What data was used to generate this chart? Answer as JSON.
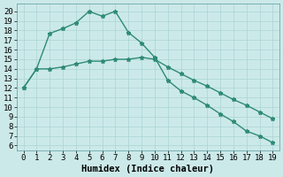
{
  "line1_x": [
    0,
    1,
    2,
    3,
    4,
    5,
    6,
    7,
    8,
    9,
    10,
    11,
    12,
    13,
    14,
    15,
    16,
    17,
    18,
    19
  ],
  "line1_y": [
    12,
    14,
    14,
    14.2,
    14.5,
    14.8,
    14.8,
    15.0,
    15.0,
    15.2,
    15.0,
    14.2,
    13.5,
    12.8,
    12.2,
    11.5,
    10.8,
    10.2,
    9.5,
    8.8
  ],
  "line2_x": [
    0,
    1,
    2,
    3,
    4,
    5,
    6,
    7,
    8,
    9,
    10,
    11,
    12,
    13,
    14,
    15,
    16,
    17,
    18,
    19
  ],
  "line2_y": [
    12,
    14,
    17.7,
    18.2,
    18.8,
    20.0,
    19.5,
    20.0,
    17.8,
    16.7,
    15.2,
    12.8,
    11.7,
    11.0,
    10.2,
    9.3,
    8.5,
    7.5,
    7.0,
    6.3
  ],
  "line_color": "#2e8b74",
  "bg_color": "#cce9e9",
  "grid_color": "#aad4d4",
  "xlabel": "Humidex (Indice chaleur)",
  "xlim": [
    -0.5,
    19.5
  ],
  "ylim": [
    5.5,
    20.8
  ],
  "xticks": [
    0,
    1,
    2,
    3,
    4,
    5,
    6,
    7,
    8,
    9,
    10,
    11,
    12,
    13,
    14,
    15,
    16,
    17,
    18,
    19
  ],
  "yticks": [
    6,
    7,
    8,
    9,
    10,
    11,
    12,
    13,
    14,
    15,
    16,
    17,
    18,
    19,
    20
  ],
  "font_size": 6.5,
  "xlabel_font_size": 7.5,
  "marker": "*",
  "marker_size": 3.5,
  "line_width": 1.0
}
